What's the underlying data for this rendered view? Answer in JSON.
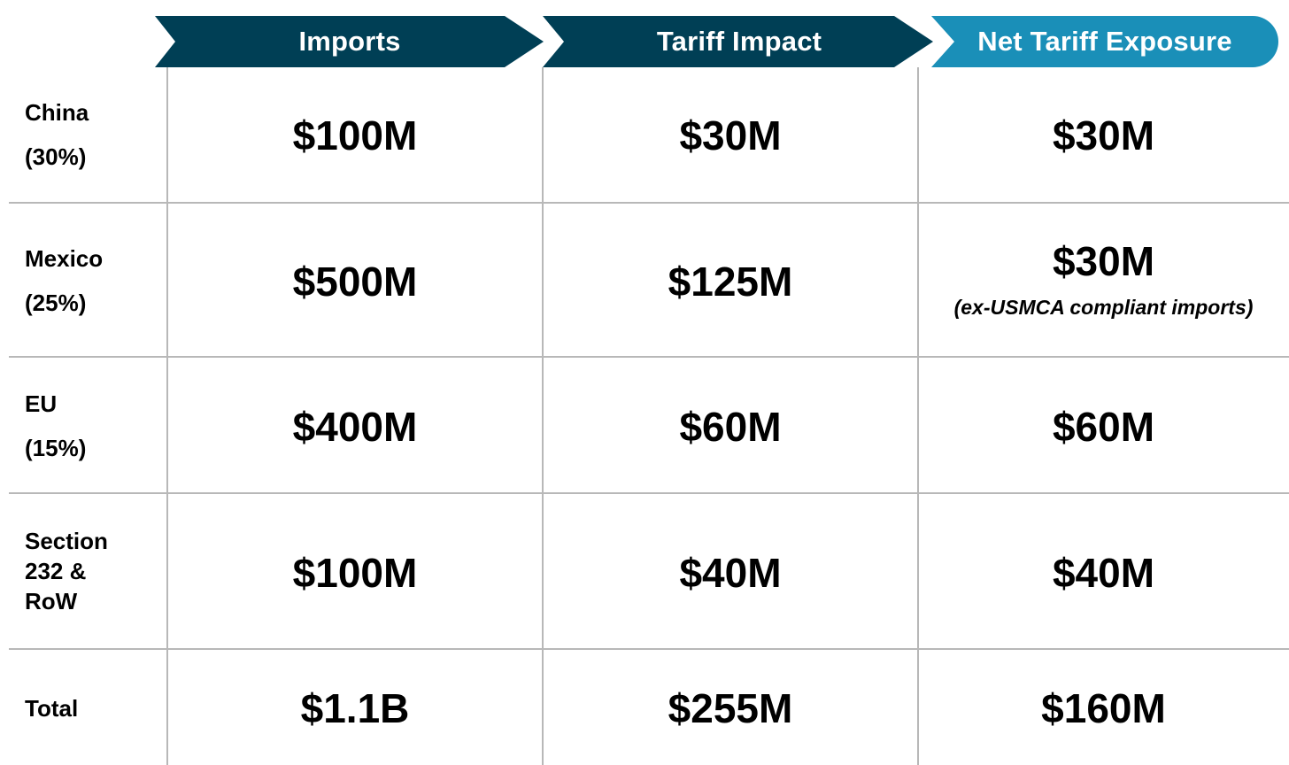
{
  "header": {
    "columns": [
      {
        "label": "Imports",
        "color": "#003f55"
      },
      {
        "label": "Tariff Impact",
        "color": "#003f55"
      },
      {
        "label": "Net Tariff Exposure",
        "color": "#1a8fb8"
      }
    ]
  },
  "rows": [
    {
      "name": "China",
      "rate": "(30%)",
      "imports": "$100M",
      "impact": "$30M",
      "net": "$30M",
      "net_note": ""
    },
    {
      "name": "Mexico",
      "rate": "(25%)",
      "imports": "$500M",
      "impact": "$125M",
      "net": "$30M",
      "net_note": "(ex-USMCA compliant imports)"
    },
    {
      "name": "EU",
      "rate": "(15%)",
      "imports": "$400M",
      "impact": "$60M",
      "net": "$60M",
      "net_note": ""
    },
    {
      "name_lines": [
        "Section",
        "232 &",
        "RoW"
      ],
      "imports": "$100M",
      "impact": "$40M",
      "net": "$40M",
      "net_note": ""
    },
    {
      "name": "Total",
      "imports": "$1.1B",
      "impact": "$255M",
      "net": "$160M",
      "net_note": ""
    }
  ],
  "colors": {
    "header_dark": "#003f55",
    "header_accent": "#1a8fb8",
    "grid_lines": "#b8b8b8"
  }
}
